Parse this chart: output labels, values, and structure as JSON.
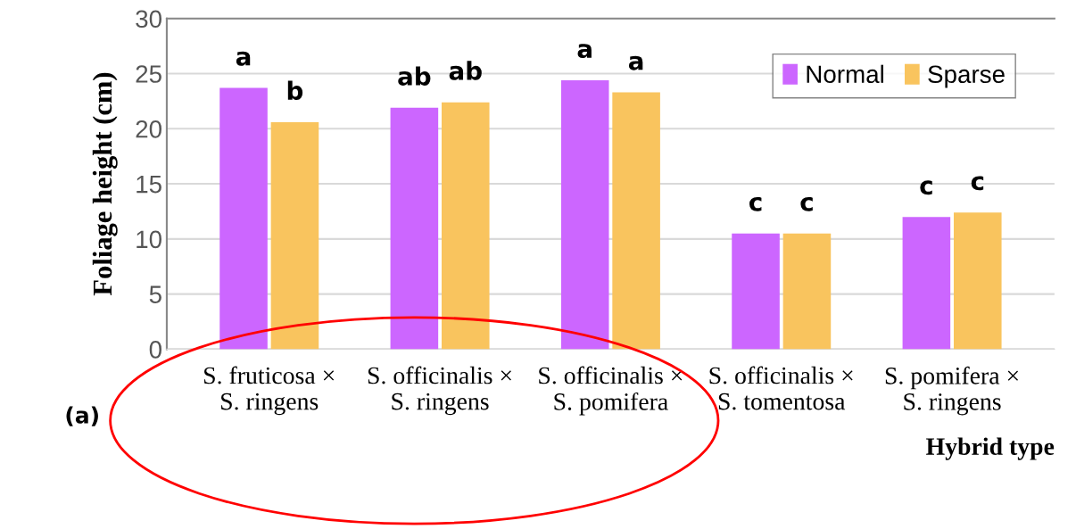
{
  "chart_data": {
    "type": "bar",
    "xlabel": "Hybrid type",
    "ylabel": "Foliage height (cm)",
    "categories": [
      "S. fruticosa ×\nS. ringens",
      "S. officinalis ×\nS. ringens",
      "S. officinalis ×\nS. pomifera",
      "S. officinalis ×\nS. tomentosa",
      "S. pomifera ×\nS. ringens"
    ],
    "series": [
      {
        "name": "Normal",
        "color": "#cc66ff",
        "values": [
          23.7,
          21.9,
          24.4,
          10.5,
          12.0
        ],
        "value_labels": [
          "a",
          "ab",
          "a",
          "c",
          "c"
        ]
      },
      {
        "name": "Sparse",
        "color": "#f9c45e",
        "values": [
          20.6,
          22.4,
          23.3,
          10.5,
          12.4
        ],
        "value_labels": [
          "b",
          "ab",
          "a",
          "c",
          "c"
        ]
      }
    ],
    "ylim": [
      0,
      30
    ],
    "yticks": [
      0,
      5,
      10,
      15,
      20,
      25,
      30
    ],
    "grid": "y",
    "legend": "top right",
    "annotations": [
      "(a)"
    ]
  }
}
